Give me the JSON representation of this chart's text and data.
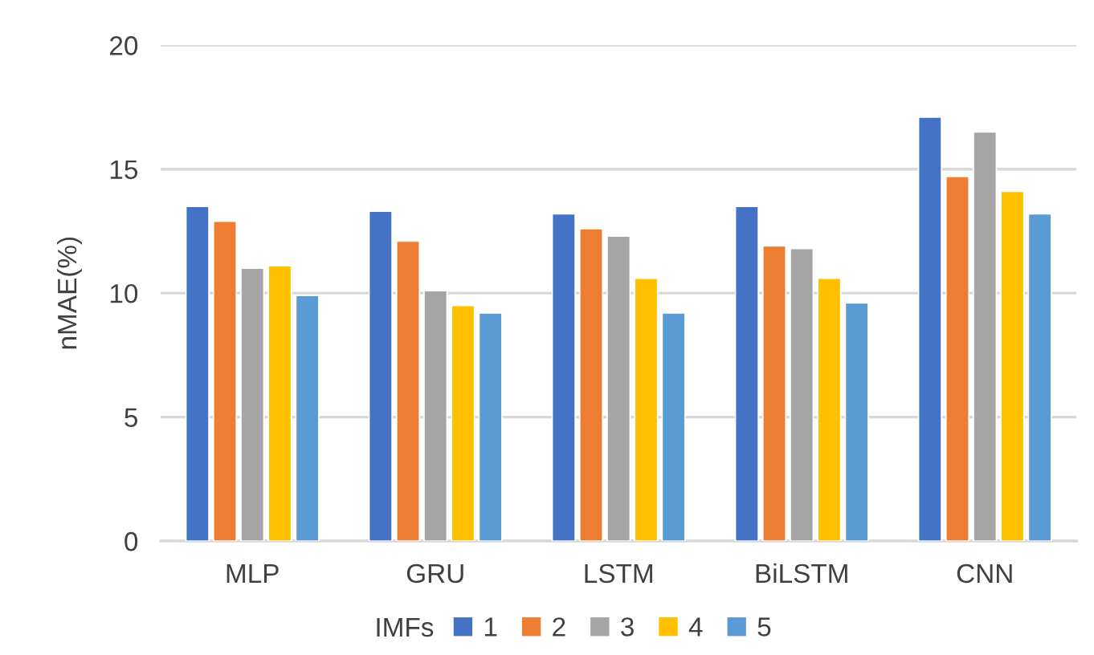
{
  "chart_data": {
    "type": "bar",
    "categories": [
      "MLP",
      "GRU",
      "LSTM",
      "BiLSTM",
      "CNN"
    ],
    "ylabel": "nMAE(%)",
    "legend_title": "IMFs",
    "series": [
      {
        "name": "1",
        "color": "#4472c4",
        "values": [
          13.5,
          13.3,
          13.2,
          13.5,
          17.1
        ]
      },
      {
        "name": "2",
        "color": "#ed7d31",
        "values": [
          12.9,
          12.1,
          12.6,
          11.9,
          14.7
        ]
      },
      {
        "name": "3",
        "color": "#a5a5a5",
        "values": [
          11.0,
          10.1,
          12.3,
          11.8,
          16.5
        ]
      },
      {
        "name": "4",
        "color": "#ffc000",
        "values": [
          11.1,
          9.5,
          10.6,
          10.6,
          14.1
        ]
      },
      {
        "name": "5",
        "color": "#5b9bd5",
        "values": [
          9.9,
          9.2,
          9.2,
          9.6,
          13.2
        ]
      }
    ],
    "ylim": [
      0,
      20
    ],
    "yticks": [
      0,
      5,
      10,
      15,
      20
    ],
    "grid": "y",
    "legend": "bottom"
  }
}
